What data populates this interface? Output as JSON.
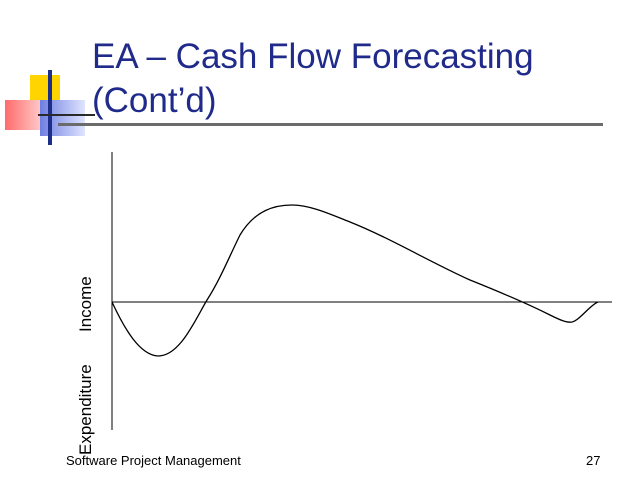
{
  "slide": {
    "title_line1": "EA – Cash Flow Forecasting",
    "title_line2": "(Cont’d)",
    "footer": "Software Project Management",
    "page_number": "27",
    "title_color": "#1f2a8a"
  },
  "chart_data": {
    "type": "line",
    "title": "",
    "ylabel_top": "Income",
    "ylabel_bottom": "Expenditure",
    "xlabel": "",
    "x": [
      0,
      0.1,
      0.2,
      0.3,
      0.35,
      0.45,
      0.55,
      0.65,
      0.75,
      0.85,
      0.92,
      0.95,
      1.0
    ],
    "y": [
      0,
      -0.45,
      -0.45,
      -0.05,
      0.37,
      0.85,
      0.82,
      0.55,
      0.3,
      0.05,
      -0.18,
      -0.15,
      0
    ],
    "grid": false
  }
}
